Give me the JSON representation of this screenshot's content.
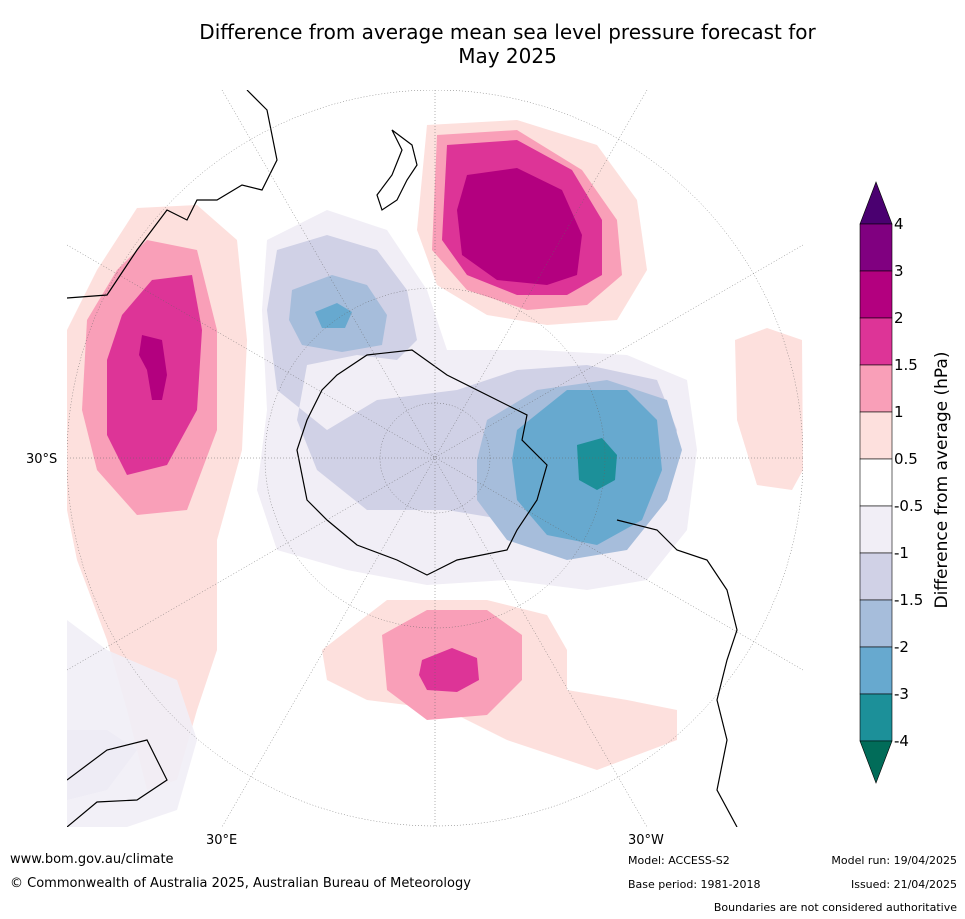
{
  "title_line1": "Difference from average mean sea level pressure forecast for",
  "title_line2": "May 2025",
  "axis_labels": {
    "lat_left": "30°S",
    "lon_bottom_left": "30°E",
    "lon_bottom_right": "30°W"
  },
  "colorbar": {
    "title": "Difference from average (hPa)",
    "ticks": [
      "4",
      "3",
      "2",
      "1.5",
      "1",
      "0.5",
      "-0.5",
      "-1",
      "-1.5",
      "-2",
      "-3",
      "-4"
    ],
    "colors": [
      "#4a0070",
      "#800080",
      "#b3007f",
      "#dd3497",
      "#f99fb8",
      "#fde0dd",
      "#ffffff",
      "#f1eef6",
      "#d0d1e6",
      "#a6bddb",
      "#67a9cf",
      "#1c9099",
      "#016c59"
    ]
  },
  "footer": {
    "website": "www.bom.gov.au/climate",
    "copyright": "© Commonwealth of Australia 2025, Australian Bureau of Meteorology",
    "model": "Model: ACCESS-S2",
    "base_period": "Base period: 1981-2018",
    "model_run": "Model run: 19/04/2025",
    "issued": "Issued: 21/04/2025",
    "disclaimer": "Boundaries are not considered authoritative"
  }
}
